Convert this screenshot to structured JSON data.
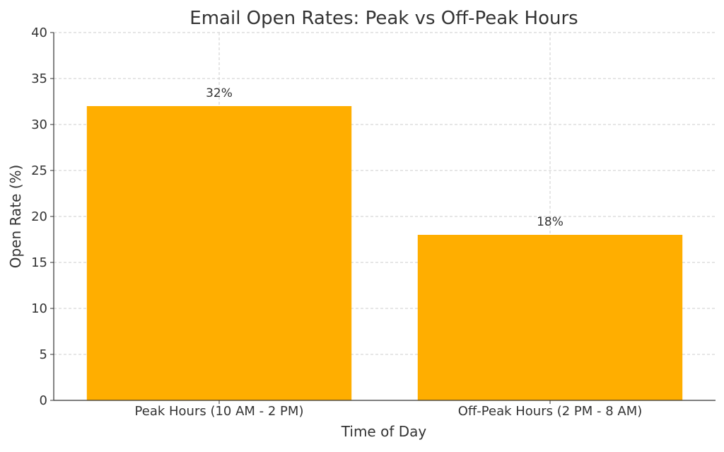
{
  "chart_data": {
    "type": "bar",
    "title": "Email Open Rates: Peak vs Off-Peak Hours",
    "xlabel": "Time of Day",
    "ylabel": "Open Rate (%)",
    "categories": [
      "Peak Hours (10 AM - 2 PM)",
      "Off-Peak Hours (2 PM - 8 AM)"
    ],
    "values": [
      32,
      18
    ],
    "data_labels": [
      "32%",
      "18%"
    ],
    "ylim": [
      0,
      40
    ],
    "yticks": [
      0,
      5,
      10,
      15,
      20,
      25,
      30,
      35,
      40
    ],
    "grid": true,
    "legend": false,
    "colors": {
      "bar": "#FFAE00",
      "grid": "#cccccc",
      "axis": "#333333",
      "text": "#333333"
    }
  }
}
